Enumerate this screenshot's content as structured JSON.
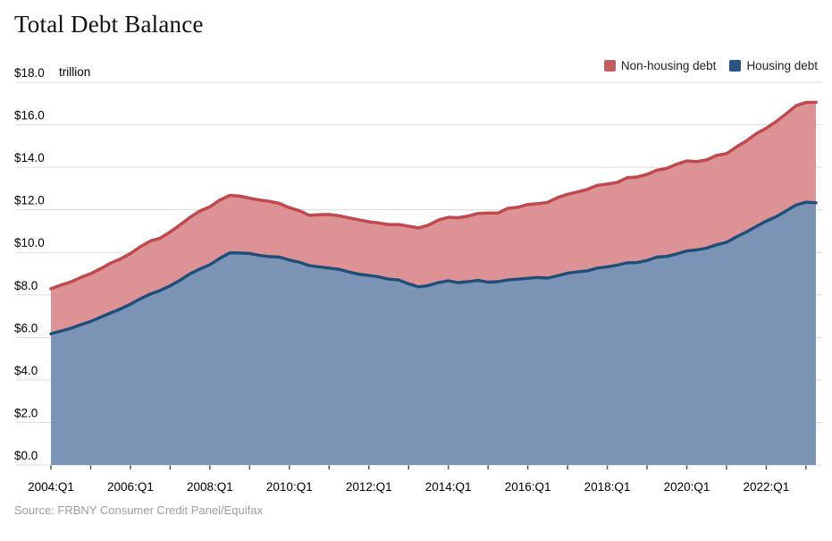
{
  "title": "Total Debt Balance",
  "unit_label": "trillion",
  "source": "Source: FRBNY Consumer Credit Panel/Equifax",
  "legend": [
    {
      "label": "Non-housing debt",
      "color": "#c25f63"
    },
    {
      "label": "Housing debt",
      "color": "#2b5580"
    }
  ],
  "colors": {
    "non_housing_fill": "#dd9396",
    "non_housing_line": "#c0494e",
    "housing_fill": "#7b93b4",
    "housing_line": "#1f4e79",
    "grid": "#dcdcdc",
    "tick": "#555555",
    "axis_text": "#000000",
    "source_text": "#98a0a8"
  },
  "chart_data": {
    "type": "area",
    "stacked": true,
    "title": "Total Debt Balance",
    "ylabel": "$ trillion",
    "ylim": [
      0,
      18
    ],
    "y_tick_step": 2,
    "y_tick_labels": [
      "$0.0",
      "$2.0",
      "$4.0",
      "$6.0",
      "$8.0",
      "$10.0",
      "$12.0",
      "$14.0",
      "$16.0",
      "$18.0"
    ],
    "x_tick_labels": [
      "2004:Q1",
      "2006:Q1",
      "2008:Q1",
      "2010:Q1",
      "2012:Q1",
      "2014:Q1",
      "2016:Q1",
      "2018:Q1",
      "2020:Q1",
      "2022:Q1"
    ],
    "x_tick_indices": [
      0,
      8,
      16,
      24,
      32,
      40,
      48,
      56,
      64,
      72
    ],
    "grid": true,
    "legend_position": "top-right",
    "x": [
      "2004:Q1",
      "2004:Q2",
      "2004:Q3",
      "2004:Q4",
      "2005:Q1",
      "2005:Q2",
      "2005:Q3",
      "2005:Q4",
      "2006:Q1",
      "2006:Q2",
      "2006:Q3",
      "2006:Q4",
      "2007:Q1",
      "2007:Q2",
      "2007:Q3",
      "2007:Q4",
      "2008:Q1",
      "2008:Q2",
      "2008:Q3",
      "2008:Q4",
      "2009:Q1",
      "2009:Q2",
      "2009:Q3",
      "2009:Q4",
      "2010:Q1",
      "2010:Q2",
      "2010:Q3",
      "2010:Q4",
      "2011:Q1",
      "2011:Q2",
      "2011:Q3",
      "2011:Q4",
      "2012:Q1",
      "2012:Q2",
      "2012:Q3",
      "2012:Q4",
      "2013:Q1",
      "2013:Q2",
      "2013:Q3",
      "2013:Q4",
      "2014:Q1",
      "2014:Q2",
      "2014:Q3",
      "2014:Q4",
      "2015:Q1",
      "2015:Q2",
      "2015:Q3",
      "2015:Q4",
      "2016:Q1",
      "2016:Q2",
      "2016:Q3",
      "2016:Q4",
      "2017:Q1",
      "2017:Q2",
      "2017:Q3",
      "2017:Q4",
      "2018:Q1",
      "2018:Q2",
      "2018:Q3",
      "2018:Q4",
      "2019:Q1",
      "2019:Q2",
      "2019:Q3",
      "2019:Q4",
      "2020:Q1",
      "2020:Q2",
      "2020:Q3",
      "2020:Q4",
      "2021:Q1",
      "2021:Q2",
      "2021:Q3",
      "2021:Q4",
      "2022:Q1",
      "2022:Q2",
      "2022:Q3",
      "2022:Q4",
      "2023:Q1",
      "2023:Q2"
    ],
    "series": [
      {
        "name": "Housing debt",
        "values": [
          6.17,
          6.3,
          6.43,
          6.6,
          6.75,
          6.95,
          7.15,
          7.34,
          7.56,
          7.82,
          8.04,
          8.21,
          8.43,
          8.69,
          8.99,
          9.22,
          9.42,
          9.72,
          9.98,
          9.97,
          9.95,
          9.86,
          9.8,
          9.78,
          9.64,
          9.54,
          9.38,
          9.32,
          9.26,
          9.2,
          9.08,
          8.97,
          8.92,
          8.85,
          8.74,
          8.7,
          8.52,
          8.38,
          8.44,
          8.58,
          8.66,
          8.58,
          8.62,
          8.68,
          8.6,
          8.62,
          8.7,
          8.74,
          8.78,
          8.82,
          8.79,
          8.9,
          9.02,
          9.08,
          9.13,
          9.26,
          9.32,
          9.4,
          9.51,
          9.52,
          9.62,
          9.78,
          9.81,
          9.93,
          10.07,
          10.12,
          10.2,
          10.36,
          10.47,
          10.73,
          10.96,
          11.22,
          11.47,
          11.68,
          11.95,
          12.23,
          12.36,
          12.33
        ]
      },
      {
        "name": "Non-housing debt",
        "values": [
          2.12,
          2.16,
          2.18,
          2.22,
          2.25,
          2.28,
          2.34,
          2.35,
          2.38,
          2.45,
          2.49,
          2.46,
          2.53,
          2.6,
          2.66,
          2.73,
          2.72,
          2.74,
          2.7,
          2.67,
          2.6,
          2.6,
          2.6,
          2.52,
          2.46,
          2.42,
          2.36,
          2.45,
          2.52,
          2.52,
          2.54,
          2.56,
          2.52,
          2.53,
          2.57,
          2.61,
          2.71,
          2.77,
          2.84,
          2.94,
          2.99,
          3.05,
          3.09,
          3.15,
          3.25,
          3.23,
          3.37,
          3.38,
          3.47,
          3.47,
          3.56,
          3.68,
          3.71,
          3.76,
          3.83,
          3.89,
          3.89,
          3.89,
          4.0,
          4.02,
          4.05,
          4.08,
          4.14,
          4.22,
          4.23,
          4.15,
          4.15,
          4.2,
          4.17,
          4.23,
          4.28,
          4.36,
          4.37,
          4.47,
          4.56,
          4.67,
          4.69,
          4.73
        ]
      }
    ]
  }
}
